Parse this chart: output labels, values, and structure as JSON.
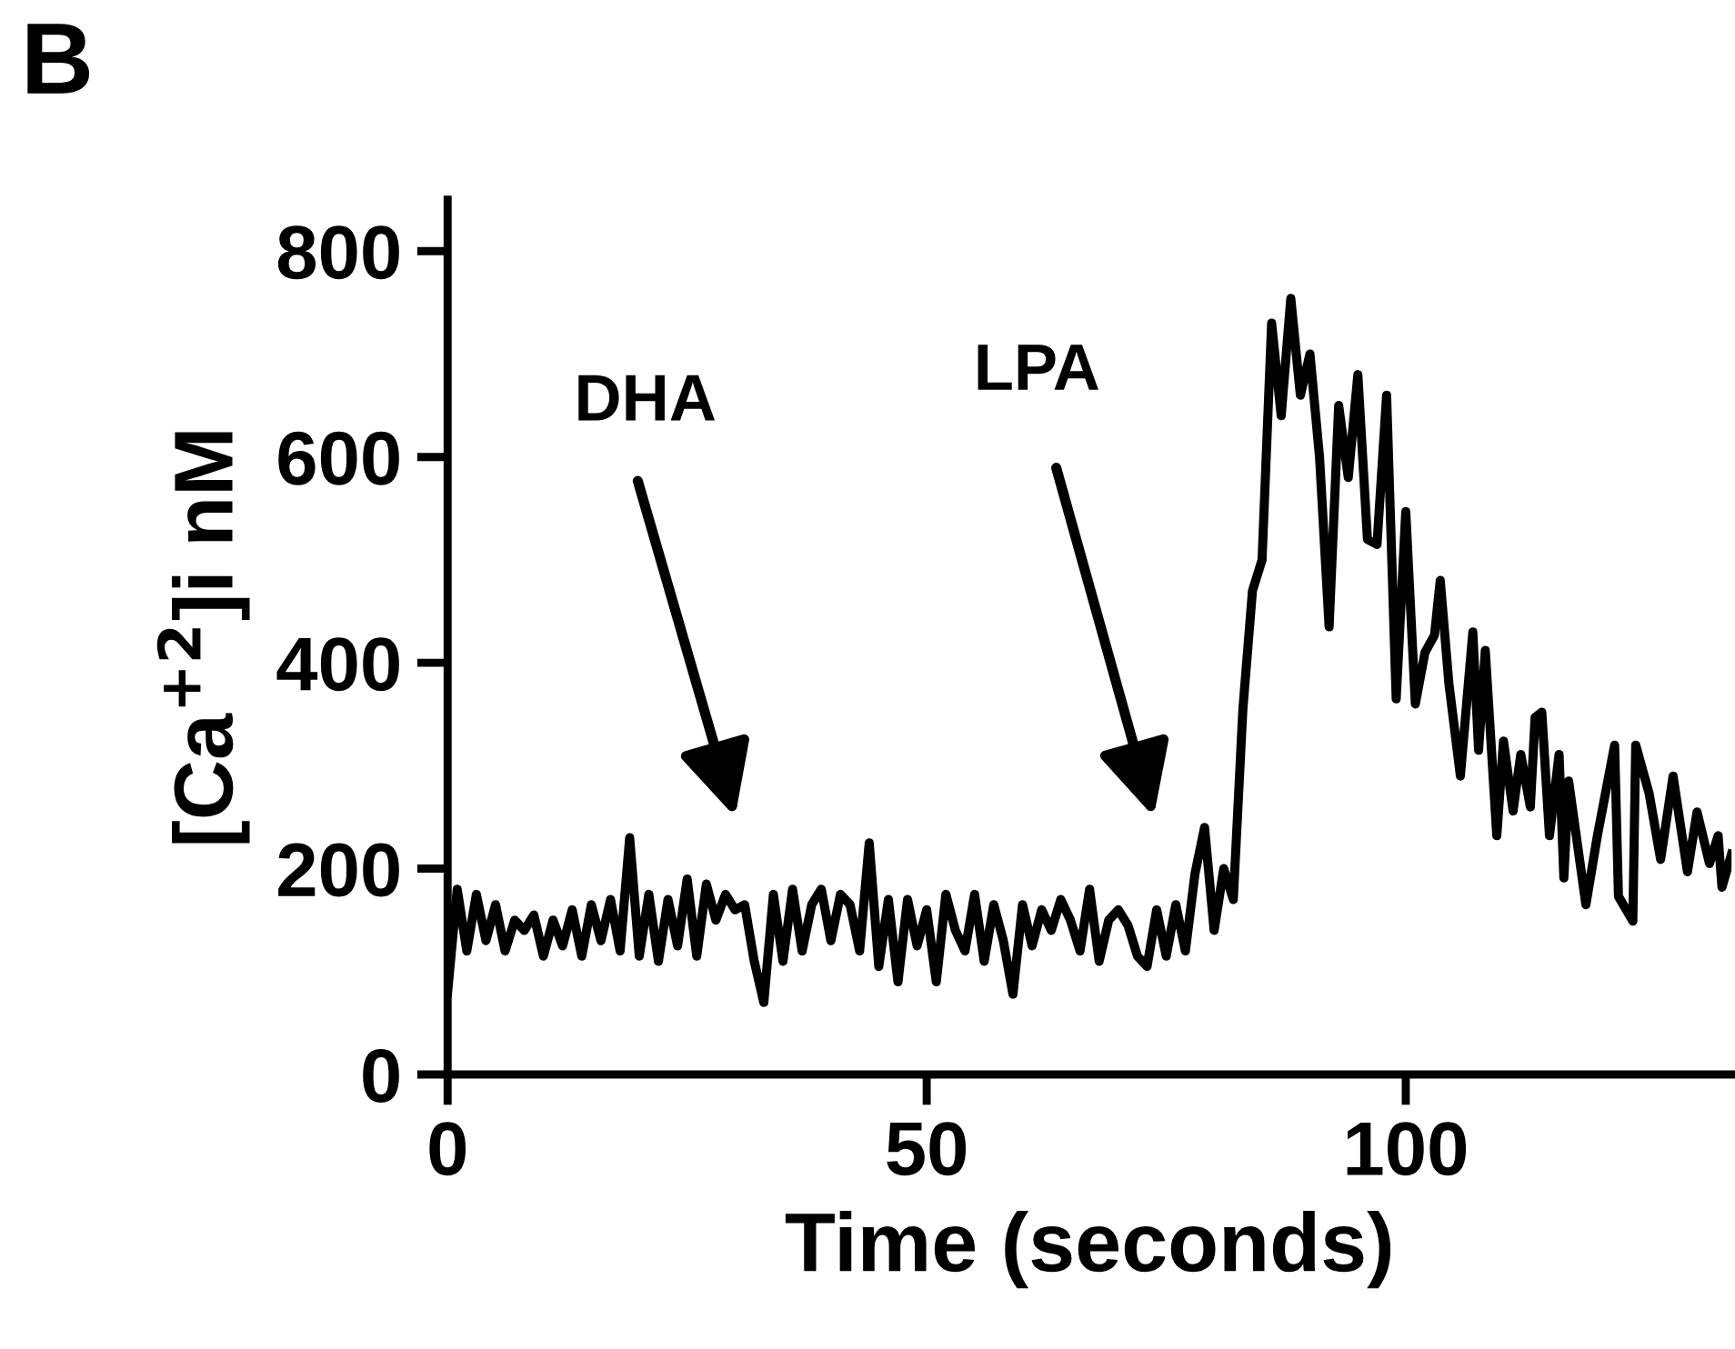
{
  "chart_data": {
    "type": "line",
    "xlabel": "Time (seconds)",
    "ylabel": "[Ca$^{+2}$]i nM",
    "annotations": [
      "B",
      "DHA",
      "LPA"
    ],
    "xlim": [
      0,
      134
    ],
    "ylim": [
      0,
      850
    ],
    "xticks": [
      0,
      50,
      100
    ],
    "yticks": [
      0,
      200,
      400,
      600,
      800
    ],
    "grid": false,
    "marker": "none",
    "line_style": "solid",
    "series": [
      {
        "color": "#000000",
        "x": [
          0,
          1,
          2,
          3,
          4,
          5,
          6,
          7,
          8,
          9,
          10,
          11,
          12,
          13,
          14,
          15,
          16,
          17,
          18,
          19,
          20,
          21,
          22,
          23,
          24,
          25,
          26,
          27,
          28,
          29,
          30,
          31,
          32,
          33,
          34,
          35,
          36,
          37,
          38,
          39,
          40,
          41,
          42,
          43,
          44,
          45,
          46,
          47,
          48,
          49,
          50,
          51,
          52,
          53,
          54,
          55,
          56,
          57,
          58,
          59,
          60,
          61,
          62,
          63,
          64,
          65,
          66,
          67,
          68,
          69,
          70,
          71,
          72,
          73,
          74,
          75,
          76,
          77,
          78,
          79,
          80,
          81,
          82,
          83,
          84,
          85,
          86,
          87,
          88,
          89,
          90,
          91,
          92,
          93,
          94,
          95,
          96,
          97,
          98,
          99,
          100,
          101,
          102,
          103,
          103.6,
          104.5,
          105.7,
          107,
          107.6,
          108.3,
          109.5,
          110.2,
          111.2,
          112,
          113,
          113.5,
          114.2,
          115,
          116,
          116.5,
          117,
          118.8,
          120,
          121.8,
          122.2,
          123.7,
          124,
          125.4,
          126.6,
          127.9,
          129.4,
          130.4,
          131.7,
          132.6,
          133,
          134
        ],
        "values": [
          80,
          180,
          120,
          175,
          130,
          165,
          120,
          150,
          140,
          155,
          115,
          150,
          125,
          160,
          115,
          165,
          130,
          170,
          120,
          230,
          115,
          175,
          110,
          170,
          125,
          190,
          115,
          185,
          150,
          175,
          160,
          165,
          110,
          70,
          175,
          110,
          180,
          120,
          165,
          180,
          130,
          175,
          165,
          120,
          225,
          105,
          170,
          90,
          170,
          125,
          160,
          90,
          175,
          140,
          120,
          175,
          110,
          165,
          130,
          78,
          165,
          125,
          160,
          140,
          170,
          150,
          120,
          180,
          110,
          150,
          160,
          145,
          115,
          105,
          160,
          115,
          165,
          120,
          195,
          240,
          140,
          200,
          170,
          355,
          470,
          500,
          730,
          640,
          754,
          660,
          700,
          600,
          435,
          650,
          580,
          680,
          520,
          515,
          660,
          365,
          547,
          360,
          410,
          427,
          480,
          380,
          290,
          430,
          315,
          412,
          232,
          324,
          256,
          311,
          260,
          347,
          352,
          232,
          311,
          191,
          285,
          165,
          232,
          320,
          173,
          149,
          320,
          273,
          209,
          290,
          197,
          255,
          205,
          232,
          182,
          214
        ]
      }
    ]
  }
}
